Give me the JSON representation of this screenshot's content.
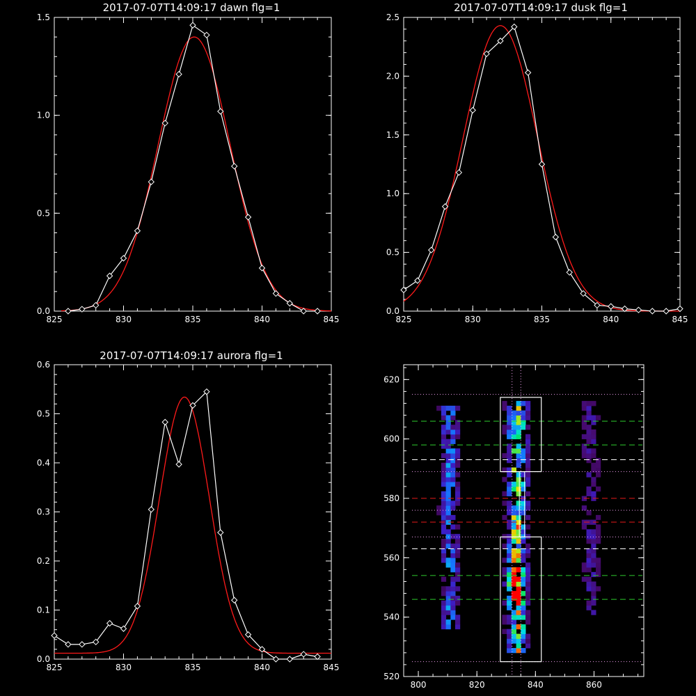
{
  "colors": {
    "background": "#000000",
    "axes": "#ffffff",
    "data_line": "#ffffff",
    "fit_line": "#ff1a1a",
    "green_dash": "#2ecc2e",
    "red_dash": "#e61a1a",
    "white_dash": "#ffffff",
    "dotted": "#f0a0f0"
  },
  "chart_data": [
    {
      "id": "dawn",
      "type": "line",
      "title": "2017-07-07T14:09:17 dawn flg=1",
      "xlim": [
        825,
        845
      ],
      "ylim": [
        0,
        1.5
      ],
      "xticks": [
        "825",
        "830",
        "835",
        "840",
        "845"
      ],
      "yticks": [
        "0.0",
        "0.5",
        "1.0",
        "1.5"
      ],
      "grid": false,
      "series": [
        {
          "role": "data",
          "x": [
            826,
            827,
            828,
            829,
            830,
            831,
            832,
            833,
            834,
            835,
            836,
            837,
            838,
            839,
            840,
            841,
            842,
            843,
            844
          ],
          "y": [
            0.0,
            0.01,
            0.03,
            0.18,
            0.27,
            0.41,
            0.66,
            0.96,
            1.21,
            1.46,
            1.41,
            1.02,
            0.74,
            0.48,
            0.22,
            0.09,
            0.04,
            0.0,
            0.0
          ]
        },
        {
          "role": "fit",
          "model": "gaussian",
          "amplitude": 1.4,
          "center": 835.1,
          "sigma": 2.6,
          "offset": 0.0,
          "x_range": [
            825.5,
            845
          ]
        }
      ]
    },
    {
      "id": "dusk",
      "type": "line",
      "title": "2017-07-07T14:09:17 dusk flg=1",
      "xlim": [
        825,
        845
      ],
      "ylim": [
        0,
        2.5
      ],
      "xticks": [
        "825",
        "830",
        "835",
        "840",
        "845"
      ],
      "yticks": [
        "0.0",
        "0.5",
        "1.0",
        "1.5",
        "2.0",
        "2.5"
      ],
      "grid": false,
      "series": [
        {
          "role": "data",
          "x": [
            825,
            826,
            827,
            828,
            829,
            830,
            831,
            832,
            833,
            834,
            835,
            836,
            837,
            838,
            839,
            840,
            841,
            842,
            843,
            844,
            845
          ],
          "y": [
            0.18,
            0.26,
            0.52,
            0.89,
            1.18,
            1.71,
            2.19,
            2.3,
            2.42,
            2.03,
            1.25,
            0.63,
            0.33,
            0.15,
            0.05,
            0.04,
            0.02,
            0.01,
            0.0,
            0.0,
            0.02
          ]
        },
        {
          "role": "fit",
          "model": "gaussian",
          "amplitude": 2.43,
          "center": 832.0,
          "sigma": 2.7,
          "offset": 0.0,
          "x_range": [
            825,
            845
          ]
        }
      ]
    },
    {
      "id": "aurora",
      "type": "line",
      "title": "2017-07-07T14:09:17 aurora flg=1",
      "xlim": [
        825,
        845
      ],
      "ylim": [
        0,
        0.6
      ],
      "xticks": [
        "825",
        "830",
        "835",
        "840",
        "845"
      ],
      "yticks": [
        "0.0",
        "0.1",
        "0.2",
        "0.3",
        "0.4",
        "0.5",
        "0.6"
      ],
      "grid": false,
      "series": [
        {
          "role": "data",
          "x": [
            825,
            826,
            827,
            828,
            829,
            830,
            831,
            832,
            833,
            834,
            835,
            836,
            837,
            838,
            839,
            840,
            841,
            842,
            843,
            844
          ],
          "y": [
            0.048,
            0.03,
            0.03,
            0.035,
            0.073,
            0.062,
            0.108,
            0.305,
            0.483,
            0.397,
            0.517,
            0.545,
            0.258,
            0.12,
            0.05,
            0.02,
            0.0,
            0.0,
            0.01,
            0.005
          ]
        },
        {
          "role": "fit",
          "model": "gaussian",
          "amplitude": 0.522,
          "center": 834.4,
          "sigma": 1.8,
          "offset": 0.012,
          "x_range": [
            825,
            845
          ]
        }
      ]
    },
    {
      "id": "image",
      "type": "heatmap",
      "title": "",
      "xlim": [
        795,
        877
      ],
      "ylim": [
        520,
        625
      ],
      "xticks": [
        "800",
        "820",
        "840",
        "860"
      ],
      "yticks": [
        "520",
        "540",
        "560",
        "580",
        "600",
        "620"
      ],
      "grid": false,
      "colormap": "rainbow (dark purple → blue → cyan → green → yellow → red)",
      "emission_columns": [
        {
          "center_x": 810,
          "y_range": [
            535,
            610
          ],
          "peak": 0.55
        },
        {
          "center_x": 833,
          "y_range": [
            528,
            612
          ],
          "peak": 1.0
        },
        {
          "center_x": 858,
          "y_range": [
            540,
            612
          ],
          "peak": 0.3
        }
      ],
      "hotspot": {
        "x": 832,
        "y": 550
      },
      "boxes": [
        {
          "x": [
            828,
            842
          ],
          "y": [
            525,
            567
          ]
        },
        {
          "x": [
            828,
            842
          ],
          "y": [
            589,
            614
          ]
        }
      ],
      "vertical_dotted_lines_x": [
        832,
        835
      ],
      "horizontal_lines": [
        {
          "y": 615,
          "style": "dotted",
          "color": "dotted"
        },
        {
          "y": 606,
          "style": "dashed",
          "color": "green_dash"
        },
        {
          "y": 598,
          "style": "dashed",
          "color": "green_dash"
        },
        {
          "y": 593,
          "style": "dashed",
          "color": "white_dash"
        },
        {
          "y": 589,
          "style": "dotted",
          "color": "dotted"
        },
        {
          "y": 580,
          "style": "dashed",
          "color": "red_dash"
        },
        {
          "y": 576,
          "style": "dotted",
          "color": "dotted"
        },
        {
          "y": 572,
          "style": "dashed",
          "color": "red_dash"
        },
        {
          "y": 567,
          "style": "dotted",
          "color": "dotted"
        },
        {
          "y": 563,
          "style": "dashed",
          "color": "white_dash"
        },
        {
          "y": 554,
          "style": "dashed",
          "color": "green_dash"
        },
        {
          "y": 546,
          "style": "dashed",
          "color": "green_dash"
        },
        {
          "y": 525,
          "style": "dotted",
          "color": "dotted"
        }
      ]
    }
  ]
}
